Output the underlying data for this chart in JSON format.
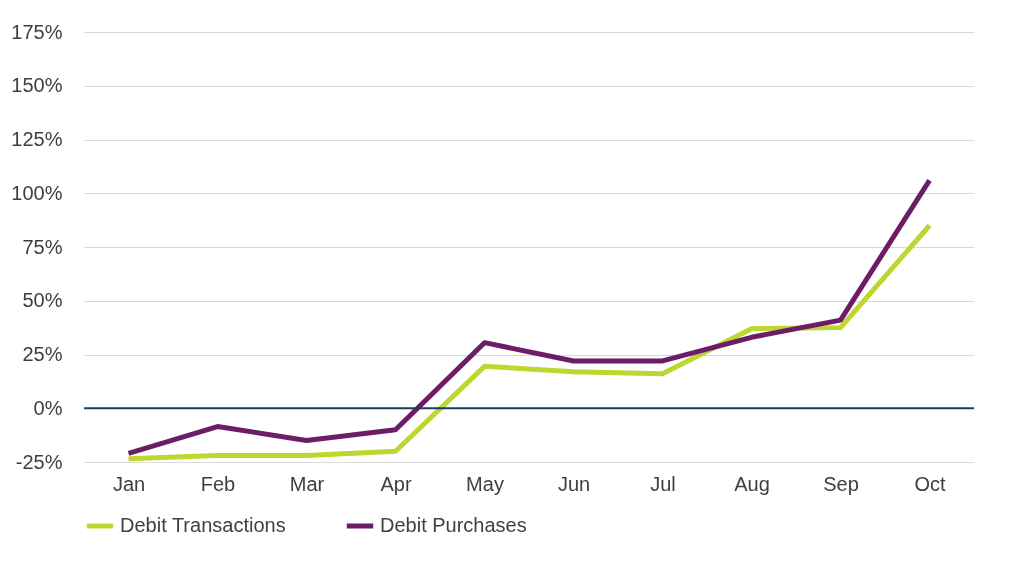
{
  "chart_data": {
    "type": "line",
    "categories": [
      "Jan",
      "Feb",
      "Mar",
      "Apr",
      "May",
      "Jun",
      "Jul",
      "Aug",
      "Sep",
      "Oct"
    ],
    "series": [
      {
        "name": "Debit Transactions",
        "color": "#bed62f",
        "values": [
          -23.5,
          -22,
          -22,
          -20,
          19.5,
          17,
          16,
          37,
          37.5,
          85
        ]
      },
      {
        "name": "Debit Purchases",
        "color": "#6b1d66",
        "values": [
          -21,
          -8.5,
          -15,
          -10,
          30.5,
          22,
          22,
          33,
          41,
          106
        ]
      }
    ],
    "ylim": [
      -25,
      175
    ],
    "yticks": [
      {
        "value": -25,
        "label": "-25%"
      },
      {
        "value": 0,
        "label": "0%"
      },
      {
        "value": 25,
        "label": "25%"
      },
      {
        "value": 50,
        "label": "50%"
      },
      {
        "value": 75,
        "label": "75%"
      },
      {
        "value": 100,
        "label": "100%"
      },
      {
        "value": 125,
        "label": "125%"
      },
      {
        "value": 150,
        "label": "150%"
      },
      {
        "value": 175,
        "label": "175%"
      }
    ],
    "ref_lines": [
      {
        "axis": "y",
        "value": 0,
        "color": "#1c3d5a"
      }
    ],
    "grid": "y",
    "legend": "bottom",
    "marker": "none",
    "line_style": "solid"
  }
}
